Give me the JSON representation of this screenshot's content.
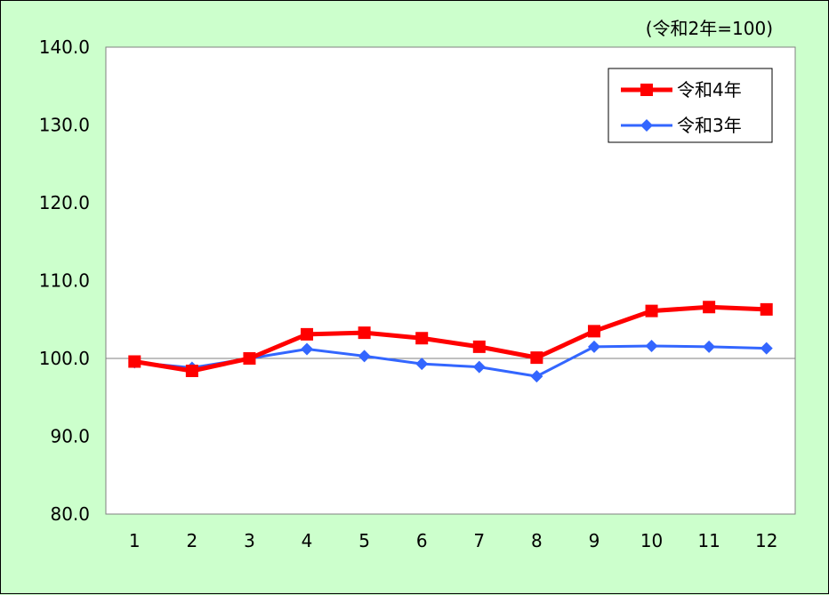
{
  "chart_data": {
    "type": "line",
    "title": "",
    "unit_note": "(令和2年=100)",
    "xlabel": "",
    "ylabel": "",
    "categories": [
      "1",
      "2",
      "3",
      "4",
      "5",
      "6",
      "7",
      "8",
      "9",
      "10",
      "11",
      "12"
    ],
    "yticks": [
      "140.0",
      "130.0",
      "120.0",
      "110.0",
      "100.0",
      "90.0",
      "80.0"
    ],
    "ylim": [
      80,
      140
    ],
    "reference_line": 100,
    "grid": false,
    "legend_position": "top-right",
    "series": [
      {
        "name": "令和4年",
        "color": "#ff0000",
        "marker": "square",
        "values": [
          99.6,
          98.4,
          100.0,
          103.1,
          103.3,
          102.6,
          101.5,
          100.1,
          103.5,
          106.1,
          106.6,
          106.3
        ]
      },
      {
        "name": "令和3年",
        "color": "#3366ff",
        "marker": "diamond",
        "values": [
          99.5,
          98.8,
          100.0,
          101.2,
          100.3,
          99.3,
          98.9,
          97.7,
          101.5,
          101.6,
          101.5,
          101.3
        ]
      }
    ]
  }
}
